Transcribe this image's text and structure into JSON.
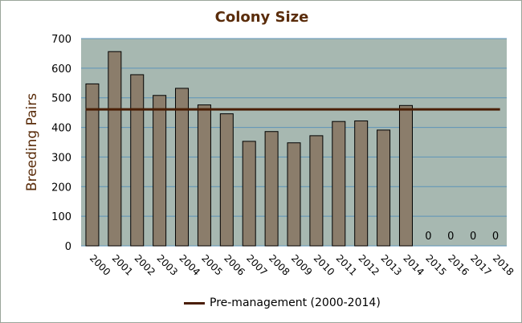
{
  "chart_data": {
    "type": "bar",
    "title": "Colony Size",
    "xlabel": "",
    "ylabel": "Breeding Pairs",
    "ylim": [
      0,
      700
    ],
    "yticks": [
      0,
      100,
      200,
      300,
      400,
      500,
      600,
      700
    ],
    "grid": true,
    "legend_position": "bottom",
    "categories": [
      "2000",
      "2001",
      "2002",
      "2003",
      "2004",
      "2005",
      "2006",
      "2007",
      "2008",
      "2009",
      "2010",
      "2011",
      "2012",
      "2013",
      "2014",
      "2015",
      "2016",
      "2017",
      "2018"
    ],
    "series": [
      {
        "type": "bar",
        "values": [
          547,
          656,
          578,
          508,
          532,
          476,
          446,
          353,
          386,
          348,
          372,
          420,
          422,
          391,
          474,
          0,
          0,
          0,
          0
        ],
        "color": "#8b7d6b"
      },
      {
        "type": "line",
        "name": "Pre-management (2000-2014)",
        "value": 461,
        "color": "#4a1e05"
      }
    ],
    "data_labels": [
      {
        "category": "2015",
        "text": "0"
      },
      {
        "category": "2016",
        "text": "0"
      },
      {
        "category": "2017",
        "text": "0"
      },
      {
        "category": "2018",
        "text": "0"
      }
    ],
    "plot_background": "#a7b8b1",
    "gridline_color": "#5c93b8",
    "title_color": "#5a2c0a"
  }
}
